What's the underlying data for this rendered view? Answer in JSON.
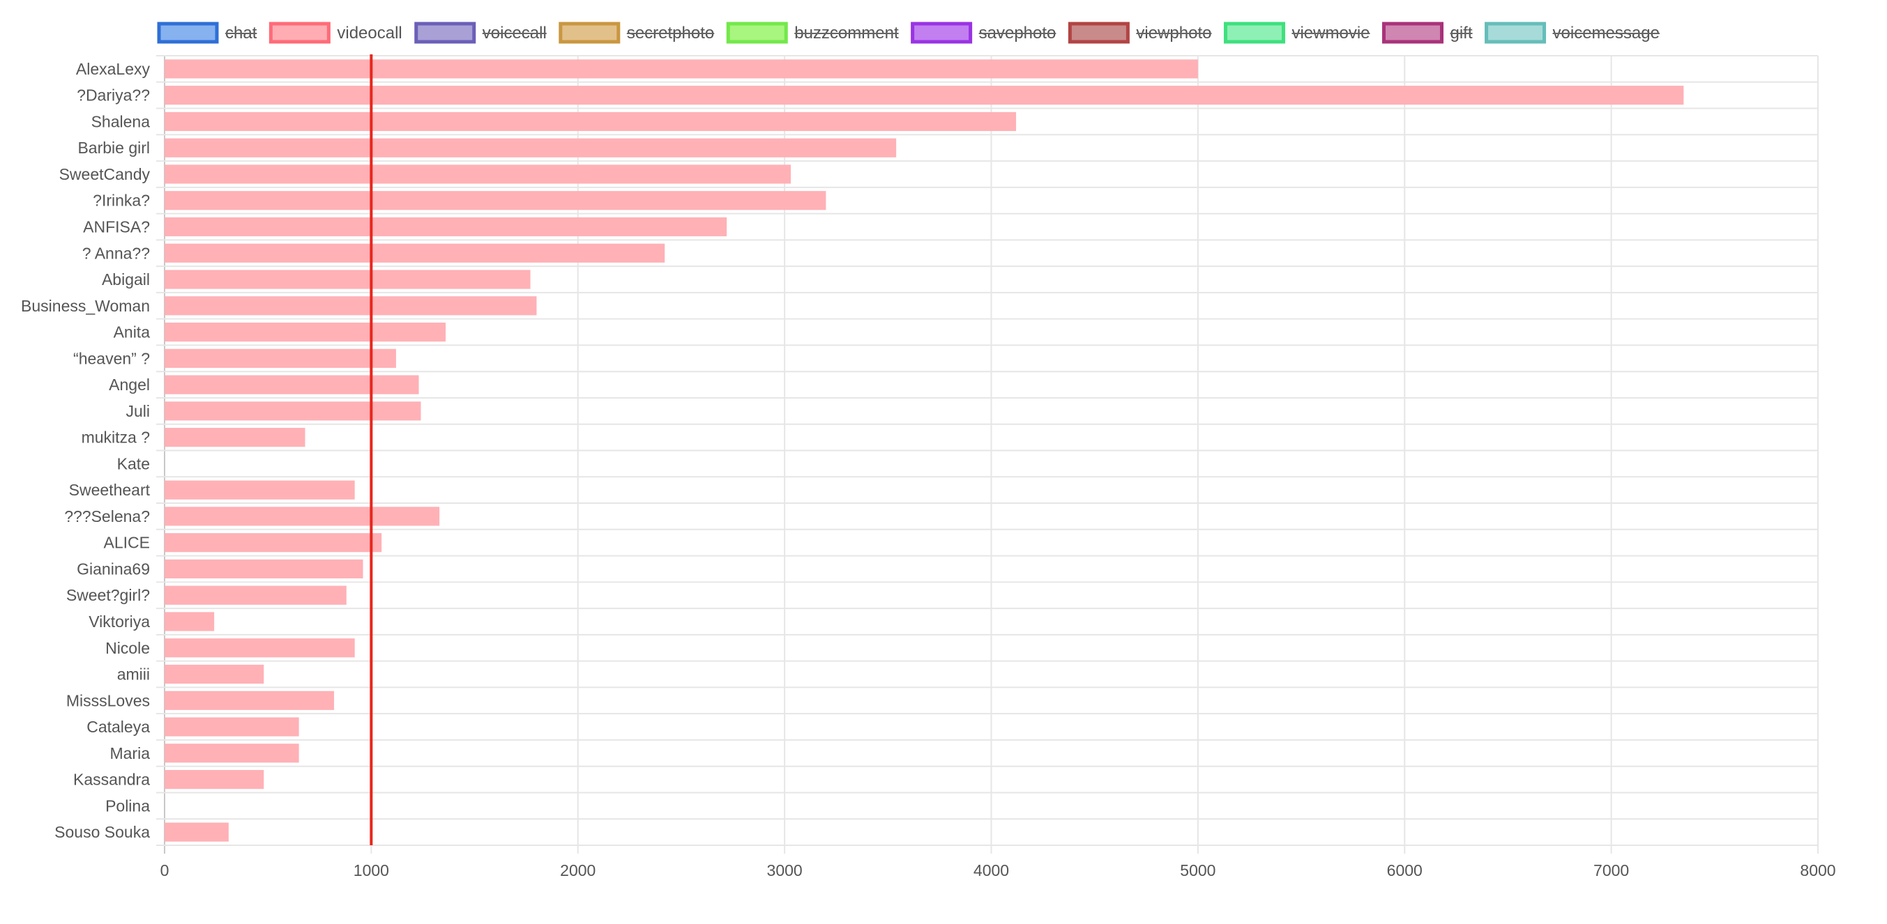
{
  "chart_data": {
    "type": "bar",
    "orientation": "horizontal",
    "title": "",
    "xlabel": "",
    "ylabel": "",
    "xlim": [
      0,
      8000
    ],
    "x_ticks": [
      "0",
      "1000",
      "2000",
      "3000",
      "4000",
      "5000",
      "6000",
      "7000",
      "8000"
    ],
    "grid": true,
    "legend_position": "top",
    "reference_line": {
      "value": 1000,
      "color": "#e8261c"
    },
    "legend": [
      {
        "name": "chat",
        "fill": "#86b2ef",
        "stroke": "#2f6fd6",
        "hidden": true
      },
      {
        "name": "videocall",
        "fill": "#ffadb3",
        "stroke": "#ff6b78",
        "hidden": false
      },
      {
        "name": "voicecall",
        "fill": "#a9a1d6",
        "stroke": "#6a5fb8",
        "hidden": true
      },
      {
        "name": "secretphoto",
        "fill": "#e2c08a",
        "stroke": "#c99740",
        "hidden": true
      },
      {
        "name": "buzzcomment",
        "fill": "#a8f57f",
        "stroke": "#73e84a",
        "hidden": true
      },
      {
        "name": "savephoto",
        "fill": "#c27ff0",
        "stroke": "#9933e3",
        "hidden": true
      },
      {
        "name": "viewphoto",
        "fill": "#c98a8a",
        "stroke": "#b24444",
        "hidden": true
      },
      {
        "name": "viewmovie",
        "fill": "#8ff0b5",
        "stroke": "#3ee07e",
        "hidden": true
      },
      {
        "name": "gift",
        "fill": "#cf86b1",
        "stroke": "#a8337a",
        "hidden": true
      },
      {
        "name": "voicemessage",
        "fill": "#a6dbd9",
        "stroke": "#66bdb9",
        "hidden": true
      }
    ],
    "categories": [
      "AlexaLexy",
      "?Dariya??",
      "Shalena",
      "Barbie girl",
      "SweetCandy",
      "?Irinka?",
      "ANFISA?",
      "? Anna??",
      "Abigail",
      "Business_Woman",
      "Anita",
      "“heaven” ?",
      "Angel",
      "Juli",
      "mukitza ?",
      "Kate",
      "Sweetheart",
      "???Selena?",
      "ALICE",
      "Gianina69",
      "Sweet?girl?",
      "Viktoriya",
      "Nicole",
      "amiii",
      "MisssLoves",
      "Cataleya",
      "Maria",
      "Kassandra",
      "Polina",
      "Souso Souka"
    ],
    "series": [
      {
        "name": "videocall",
        "color": "#ffb1b6",
        "values": [
          5000,
          7350,
          4120,
          3540,
          3030,
          3200,
          2720,
          2420,
          1770,
          1800,
          1360,
          1120,
          1230,
          1240,
          680,
          0,
          920,
          1330,
          1050,
          960,
          880,
          240,
          920,
          480,
          820,
          650,
          650,
          480,
          0,
          310
        ]
      }
    ]
  }
}
